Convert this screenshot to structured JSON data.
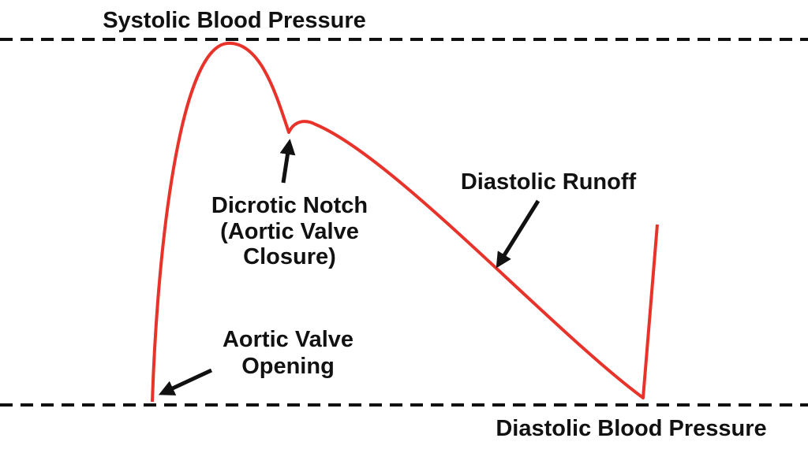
{
  "top_line": {
    "label": "Systolic Blood Pressure"
  },
  "bottom_line": {
    "label": "Diastolic Blood Pressure"
  },
  "annotations": [
    {
      "lines": [
        "Dicrotic Notch",
        "(Aortic Valve",
        "Closure)"
      ]
    },
    {
      "lines": [
        "Diastolic Runoff"
      ]
    },
    {
      "lines": [
        "Aortic Valve",
        "Opening"
      ]
    }
  ]
}
